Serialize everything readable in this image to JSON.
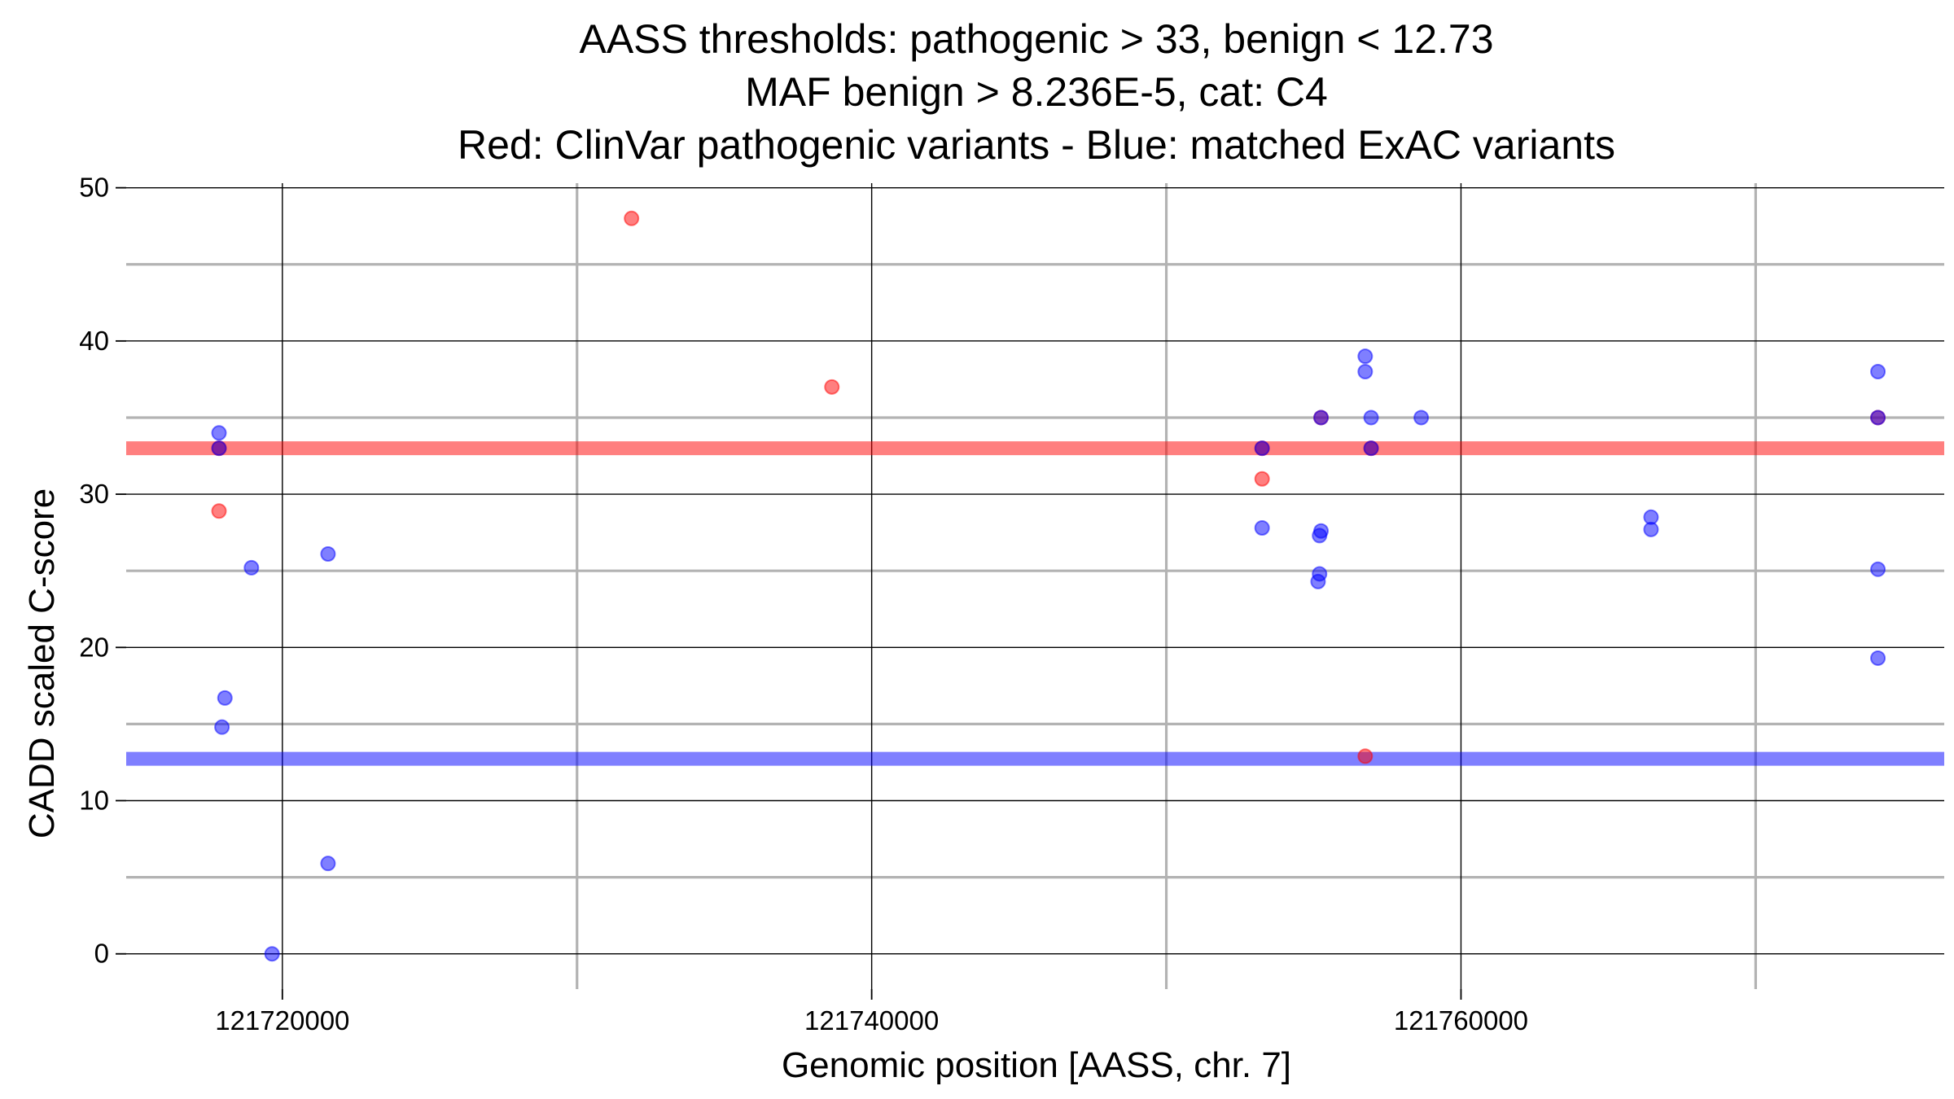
{
  "chart_data": {
    "type": "scatter",
    "title_lines": [
      "AASS thresholds: pathogenic > 33, benign < 12.73",
      "MAF benign > 8.236E-5, cat: C4",
      "Red: ClinVar pathogenic variants - Blue: matched ExAC variants"
    ],
    "xlabel": "Genomic position [AASS, chr. 7]",
    "ylabel": "CADD scaled C-score",
    "xlim": [
      121714700,
      121776400
    ],
    "ylim": [
      -2.3,
      50.3
    ],
    "x_ticks": [
      121720000,
      121740000,
      121760000
    ],
    "x_tick_labels": [
      "121720000",
      "121740000",
      "121760000"
    ],
    "x_minor_gridlines": [
      121730000,
      121750000,
      121770000
    ],
    "y_ticks": [
      0,
      10,
      20,
      30,
      40,
      50
    ],
    "y_tick_labels": [
      "0",
      "10",
      "20",
      "30",
      "40",
      "50"
    ],
    "y_minor_gridlines": [
      5,
      15,
      25,
      35,
      45
    ],
    "grid": true,
    "thresholds": [
      {
        "value": 33,
        "color": "#ff0000"
      },
      {
        "value": 12.73,
        "color": "#0000ff"
      }
    ],
    "series": [
      {
        "color": "#ff0000",
        "points": [
          {
            "x": 121717850,
            "y": 33
          },
          {
            "x": 121717850,
            "y": 28.9
          },
          {
            "x": 121731850,
            "y": 48
          },
          {
            "x": 121738650,
            "y": 37
          },
          {
            "x": 121753250,
            "y": 33
          },
          {
            "x": 121753250,
            "y": 31
          },
          {
            "x": 121755250,
            "y": 35
          },
          {
            "x": 121756950,
            "y": 33
          },
          {
            "x": 121756750,
            "y": 12.9
          },
          {
            "x": 121774150,
            "y": 35
          }
        ]
      },
      {
        "color": "#0000ff",
        "points": [
          {
            "x": 121717850,
            "y": 34
          },
          {
            "x": 121717850,
            "y": 33
          },
          {
            "x": 121718050,
            "y": 16.7
          },
          {
            "x": 121717950,
            "y": 14.8
          },
          {
            "x": 121718950,
            "y": 25.2
          },
          {
            "x": 121719650,
            "y": 0
          },
          {
            "x": 121721550,
            "y": 26.1
          },
          {
            "x": 121721550,
            "y": 5.9
          },
          {
            "x": 121753250,
            "y": 33
          },
          {
            "x": 121753250,
            "y": 27.8
          },
          {
            "x": 121755250,
            "y": 35
          },
          {
            "x": 121755250,
            "y": 27.6
          },
          {
            "x": 121755200,
            "y": 27.3
          },
          {
            "x": 121755200,
            "y": 24.8
          },
          {
            "x": 121755150,
            "y": 24.3
          },
          {
            "x": 121756750,
            "y": 39
          },
          {
            "x": 121756750,
            "y": 38
          },
          {
            "x": 121756950,
            "y": 35
          },
          {
            "x": 121756950,
            "y": 33
          },
          {
            "x": 121758650,
            "y": 35
          },
          {
            "x": 121766450,
            "y": 28.5
          },
          {
            "x": 121766450,
            "y": 27.7
          },
          {
            "x": 121774150,
            "y": 38
          },
          {
            "x": 121774150,
            "y": 35
          },
          {
            "x": 121774150,
            "y": 25.1
          },
          {
            "x": 121774150,
            "y": 19.3
          }
        ]
      }
    ]
  }
}
